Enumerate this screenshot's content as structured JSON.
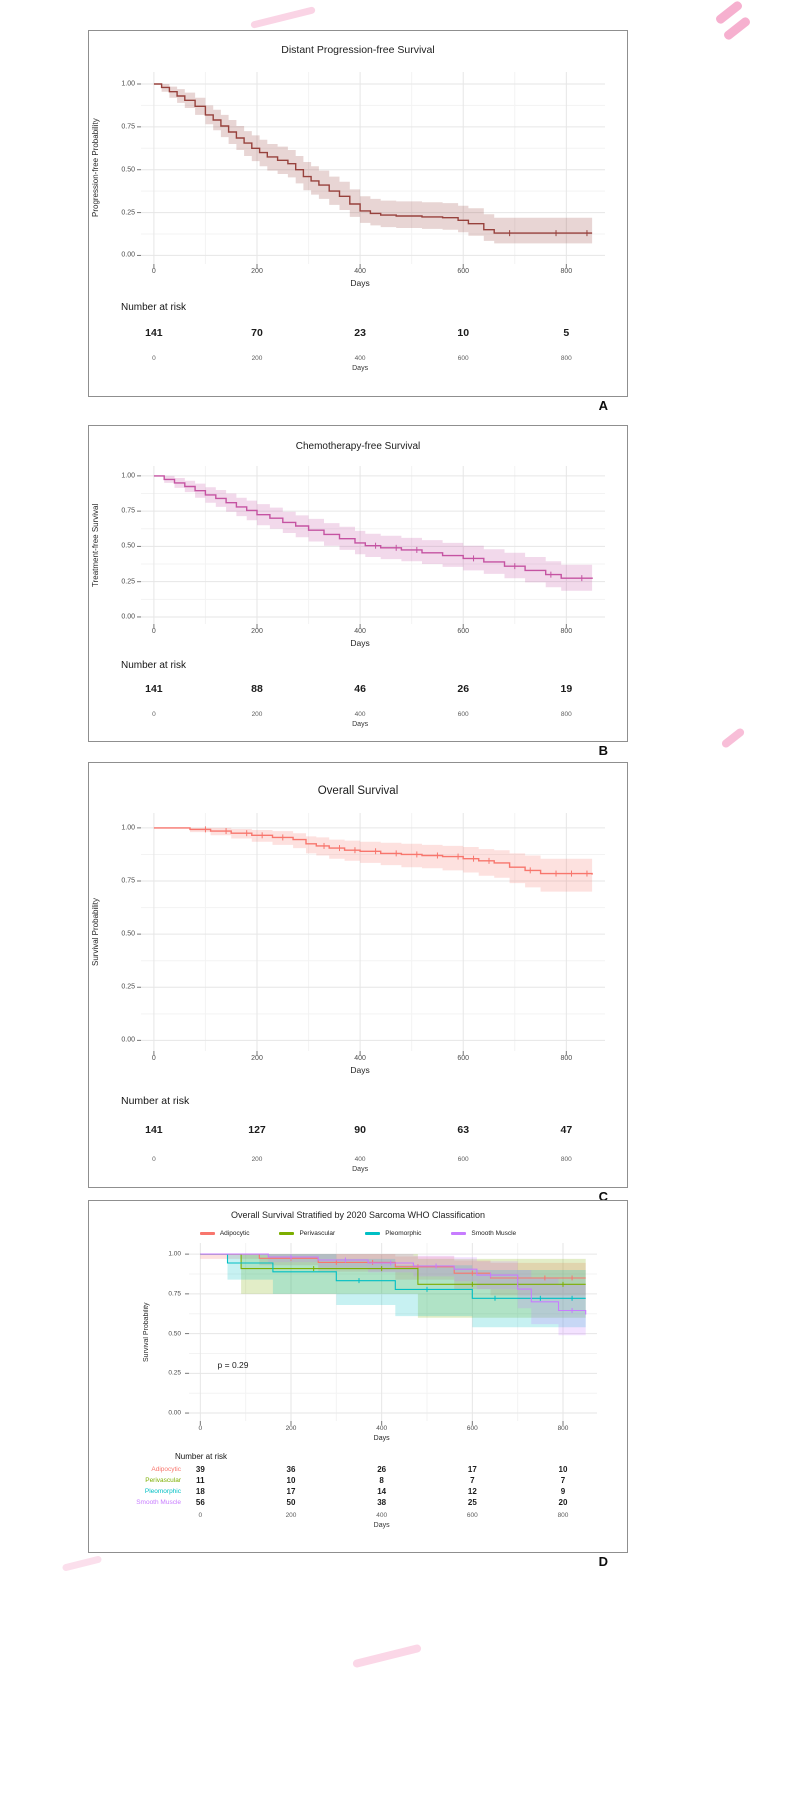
{
  "decor": {
    "watermark_color": "#ef6fa8"
  },
  "chart_data": [
    {
      "type": "line",
      "subtype": "kaplan-meier",
      "letter": "A",
      "title": "Distant Progression-free Survival",
      "xlabel": "Days",
      "ylabel": "Progression-free Probability",
      "xlim": [
        -25,
        875
      ],
      "ylim": [
        -0.05,
        1.07
      ],
      "x_ticks": [
        0,
        200,
        400,
        600,
        800
      ],
      "y_ticks": [
        0,
        0.25,
        0.5,
        0.75,
        1
      ],
      "grid": true,
      "legend_position": "none",
      "series": [
        {
          "name": "",
          "color": "#97413c",
          "points": [
            [
              0,
              1,
              1,
              1
            ],
            [
              15,
              0.98,
              0.955,
              1
            ],
            [
              30,
              0.955,
              0.92,
              0.985
            ],
            [
              45,
              0.93,
              0.89,
              0.97
            ],
            [
              60,
              0.905,
              0.86,
              0.95
            ],
            [
              80,
              0.87,
              0.82,
              0.92
            ],
            [
              100,
              0.82,
              0.765,
              0.875
            ],
            [
              115,
              0.79,
              0.73,
              0.85
            ],
            [
              130,
              0.755,
              0.69,
              0.82
            ],
            [
              145,
              0.72,
              0.65,
              0.79
            ],
            [
              160,
              0.685,
              0.615,
              0.755
            ],
            [
              175,
              0.655,
              0.58,
              0.725
            ],
            [
              190,
              0.625,
              0.55,
              0.7
            ],
            [
              205,
              0.6,
              0.52,
              0.675
            ],
            [
              220,
              0.575,
              0.495,
              0.65
            ],
            [
              240,
              0.555,
              0.475,
              0.635
            ],
            [
              260,
              0.535,
              0.455,
              0.615
            ],
            [
              275,
              0.5,
              0.42,
              0.58
            ],
            [
              290,
              0.46,
              0.38,
              0.545
            ],
            [
              305,
              0.435,
              0.355,
              0.52
            ],
            [
              320,
              0.41,
              0.33,
              0.495
            ],
            [
              340,
              0.375,
              0.295,
              0.46
            ],
            [
              360,
              0.345,
              0.265,
              0.43
            ],
            [
              380,
              0.3,
              0.225,
              0.385
            ],
            [
              400,
              0.26,
              0.19,
              0.345
            ],
            [
              420,
              0.245,
              0.175,
              0.33
            ],
            [
              440,
              0.235,
              0.165,
              0.32
            ],
            [
              470,
              0.23,
              0.16,
              0.315
            ],
            [
              520,
              0.225,
              0.155,
              0.31
            ],
            [
              560,
              0.22,
              0.15,
              0.305
            ],
            [
              590,
              0.205,
              0.135,
              0.29
            ],
            [
              610,
              0.185,
              0.115,
              0.275
            ],
            [
              640,
              0.15,
              0.085,
              0.24
            ],
            [
              660,
              0.13,
              0.07,
              0.22
            ],
            [
              850,
              0.13,
              0.07,
              0.22
            ]
          ],
          "censors": [
            690,
            780,
            840
          ]
        }
      ],
      "risk_table": {
        "label": "Number at risk",
        "rows": [
          {
            "name": "",
            "color": "#1c1c1c",
            "values": [
              141,
              70,
              23,
              10,
              5
            ]
          }
        ]
      }
    },
    {
      "type": "line",
      "subtype": "kaplan-meier",
      "letter": "B",
      "title": "Chemotherapy-free Survival",
      "xlabel": "Days",
      "ylabel": "Treatment-free Survival",
      "xlim": [
        -25,
        875
      ],
      "ylim": [
        -0.05,
        1.07
      ],
      "x_ticks": [
        0,
        200,
        400,
        600,
        800
      ],
      "y_ticks": [
        0,
        0.25,
        0.5,
        0.75,
        1
      ],
      "grid": true,
      "legend_position": "none",
      "series": [
        {
          "name": "",
          "color": "#c553a2",
          "points": [
            [
              0,
              1,
              1,
              1
            ],
            [
              20,
              0.975,
              0.95,
              1
            ],
            [
              40,
              0.95,
              0.915,
              0.985
            ],
            [
              60,
              0.925,
              0.885,
              0.965
            ],
            [
              80,
              0.895,
              0.845,
              0.945
            ],
            [
              100,
              0.865,
              0.81,
              0.92
            ],
            [
              120,
              0.84,
              0.78,
              0.9
            ],
            [
              140,
              0.81,
              0.745,
              0.875
            ],
            [
              160,
              0.78,
              0.715,
              0.845
            ],
            [
              180,
              0.755,
              0.685,
              0.825
            ],
            [
              200,
              0.725,
              0.65,
              0.8
            ],
            [
              225,
              0.7,
              0.625,
              0.775
            ],
            [
              250,
              0.67,
              0.595,
              0.745
            ],
            [
              275,
              0.645,
              0.565,
              0.72
            ],
            [
              300,
              0.615,
              0.535,
              0.695
            ],
            [
              330,
              0.585,
              0.505,
              0.665
            ],
            [
              360,
              0.555,
              0.475,
              0.64
            ],
            [
              390,
              0.525,
              0.445,
              0.61
            ],
            [
              410,
              0.505,
              0.425,
              0.59
            ],
            [
              440,
              0.49,
              0.41,
              0.575
            ],
            [
              480,
              0.475,
              0.395,
              0.56
            ],
            [
              520,
              0.455,
              0.375,
              0.545
            ],
            [
              560,
              0.435,
              0.355,
              0.525
            ],
            [
              600,
              0.415,
              0.33,
              0.505
            ],
            [
              640,
              0.39,
              0.305,
              0.48
            ],
            [
              680,
              0.36,
              0.275,
              0.455
            ],
            [
              720,
              0.33,
              0.245,
              0.425
            ],
            [
              760,
              0.3,
              0.21,
              0.395
            ],
            [
              790,
              0.275,
              0.185,
              0.37
            ],
            [
              850,
              0.27,
              0.18,
              0.365
            ]
          ],
          "censors": [
            430,
            470,
            510,
            620,
            700,
            770,
            830
          ]
        }
      ],
      "risk_table": {
        "label": "Number at risk",
        "rows": [
          {
            "name": "",
            "color": "#1c1c1c",
            "values": [
              141,
              88,
              46,
              26,
              19
            ]
          }
        ]
      }
    },
    {
      "type": "line",
      "subtype": "kaplan-meier",
      "letter": "C",
      "title": "Overall Survival",
      "xlabel": "Days",
      "ylabel": "Survival Probability",
      "xlim": [
        -25,
        875
      ],
      "ylim": [
        -0.05,
        1.07
      ],
      "x_ticks": [
        0,
        200,
        400,
        600,
        800
      ],
      "y_ticks": [
        0,
        0.25,
        0.5,
        0.75,
        1
      ],
      "grid": true,
      "legend_position": "none",
      "series": [
        {
          "name": "",
          "color": "#f8766d",
          "points": [
            [
              0,
              1,
              1,
              1
            ],
            [
              70,
              0.993,
              0.98,
              1
            ],
            [
              110,
              0.985,
              0.965,
              1
            ],
            [
              150,
              0.975,
              0.95,
              0.995
            ],
            [
              190,
              0.965,
              0.935,
              0.99
            ],
            [
              230,
              0.955,
              0.92,
              0.985
            ],
            [
              270,
              0.945,
              0.905,
              0.975
            ],
            [
              295,
              0.925,
              0.88,
              0.96
            ],
            [
              315,
              0.915,
              0.87,
              0.955
            ],
            [
              340,
              0.905,
              0.855,
              0.945
            ],
            [
              370,
              0.895,
              0.845,
              0.94
            ],
            [
              400,
              0.89,
              0.835,
              0.935
            ],
            [
              440,
              0.88,
              0.825,
              0.93
            ],
            [
              480,
              0.875,
              0.815,
              0.925
            ],
            [
              520,
              0.87,
              0.81,
              0.92
            ],
            [
              560,
              0.865,
              0.8,
              0.915
            ],
            [
              600,
              0.855,
              0.79,
              0.91
            ],
            [
              630,
              0.845,
              0.775,
              0.9
            ],
            [
              660,
              0.835,
              0.765,
              0.895
            ],
            [
              690,
              0.815,
              0.74,
              0.88
            ],
            [
              720,
              0.8,
              0.72,
              0.87
            ],
            [
              750,
              0.785,
              0.7,
              0.855
            ],
            [
              850,
              0.78,
              0.695,
              0.85
            ]
          ],
          "censors": [
            100,
            140,
            180,
            210,
            250,
            330,
            360,
            390,
            430,
            470,
            510,
            550,
            590,
            620,
            650,
            730,
            780,
            810,
            840
          ]
        }
      ],
      "risk_table": {
        "label": "Number at risk",
        "rows": [
          {
            "name": "",
            "color": "#1c1c1c",
            "values": [
              141,
              127,
              90,
              63,
              47
            ]
          }
        ]
      }
    },
    {
      "type": "line",
      "subtype": "kaplan-meier",
      "letter": "D",
      "title": "Overall Survival Stratified by 2020 Sarcoma WHO Classification",
      "xlabel": "Days",
      "ylabel": "Survival Probability",
      "p_value": "p = 0.29",
      "xlim": [
        -25,
        875
      ],
      "ylim": [
        -0.05,
        1.07
      ],
      "x_ticks": [
        0,
        200,
        400,
        600,
        800
      ],
      "y_ticks": [
        0,
        0.25,
        0.5,
        0.75,
        1
      ],
      "grid": true,
      "legend_position": "top",
      "series": [
        {
          "name": "Adipocytic",
          "color": "#f8766d",
          "points": [
            [
              0,
              1,
              0.97,
              1
            ],
            [
              130,
              0.974,
              0.93,
              1
            ],
            [
              260,
              0.948,
              0.89,
              1
            ],
            [
              430,
              0.92,
              0.84,
              0.985
            ],
            [
              560,
              0.88,
              0.78,
              0.96
            ],
            [
              640,
              0.85,
              0.74,
              0.945
            ],
            [
              850,
              0.85,
              0.74,
              0.945
            ]
          ],
          "censors": [
            200,
            300,
            380,
            480,
            600,
            700,
            760,
            820
          ]
        },
        {
          "name": "Perivascular",
          "color": "#7cae00",
          "points": [
            [
              0,
              1,
              1,
              1
            ],
            [
              90,
              0.909,
              0.75,
              1
            ],
            [
              480,
              0.81,
              0.6,
              0.97
            ],
            [
              850,
              0.81,
              0.6,
              0.97
            ]
          ],
          "censors": [
            250,
            400,
            600,
            700,
            800
          ]
        },
        {
          "name": "Pleomorphic",
          "color": "#00bfc4",
          "points": [
            [
              0,
              1,
              1,
              1
            ],
            [
              60,
              0.944,
              0.84,
              1
            ],
            [
              160,
              0.889,
              0.75,
              1
            ],
            [
              300,
              0.833,
              0.68,
              0.97
            ],
            [
              430,
              0.778,
              0.61,
              0.93
            ],
            [
              600,
              0.722,
              0.54,
              0.9
            ],
            [
              850,
              0.722,
              0.54,
              0.9
            ]
          ],
          "censors": [
            350,
            500,
            650,
            750,
            820
          ]
        },
        {
          "name": "Smooth Muscle",
          "color": "#c77cff",
          "points": [
            [
              0,
              1,
              1,
              1
            ],
            [
              150,
              0.982,
              0.95,
              1
            ],
            [
              260,
              0.963,
              0.915,
              1
            ],
            [
              370,
              0.944,
              0.885,
              1
            ],
            [
              470,
              0.925,
              0.86,
              0.99
            ],
            [
              560,
              0.905,
              0.83,
              0.98
            ],
            [
              610,
              0.868,
              0.78,
              0.955
            ],
            [
              700,
              0.78,
              0.66,
              0.9
            ],
            [
              730,
              0.7,
              0.56,
              0.85
            ],
            [
              790,
              0.645,
              0.49,
              0.81
            ],
            [
              850,
              0.62,
              0.46,
              0.79
            ]
          ],
          "censors": [
            200,
            320,
            420,
            520,
            640,
            820
          ]
        }
      ],
      "risk_table": {
        "label": "Number at risk",
        "rows": [
          {
            "name": "Adipocytic",
            "color": "#f8766d",
            "values": [
              39,
              36,
              26,
              17,
              10
            ]
          },
          {
            "name": "Perivascular",
            "color": "#7cae00",
            "values": [
              11,
              10,
              8,
              7,
              7
            ]
          },
          {
            "name": "Pleomorphic",
            "color": "#00bfc4",
            "values": [
              18,
              17,
              14,
              12,
              9
            ]
          },
          {
            "name": "Smooth Muscle",
            "color": "#c77cff",
            "values": [
              56,
              50,
              38,
              25,
              20
            ]
          }
        ]
      }
    }
  ]
}
